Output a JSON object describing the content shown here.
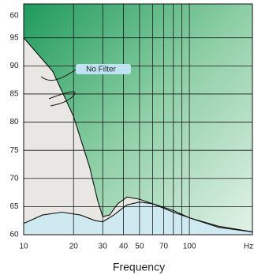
{
  "chart_data": {
    "type": "line",
    "x_label": "Frequency",
    "x_unit": "Hz",
    "top_label": "60",
    "annotation": "No Filter",
    "xscale": "log",
    "xlim": [
      10,
      240
    ],
    "ylim": [
      60,
      101
    ],
    "xticks": [
      10,
      20,
      30,
      40,
      50,
      70,
      100
    ],
    "minor_xticks": [
      60,
      80,
      90
    ],
    "yticks": [
      60,
      65,
      70,
      75,
      80,
      85,
      90,
      95
    ],
    "grid": true,
    "series": [
      {
        "color": "#111111",
        "x": [
          10,
          15,
          20,
          25,
          28,
          30,
          33,
          37,
          42,
          50,
          60,
          80,
          100,
          150,
          240
        ],
        "values": [
          95,
          89,
          81,
          72,
          66,
          63.2,
          63.5,
          65.5,
          66.7,
          66.3,
          65.5,
          64,
          63,
          61.5,
          60.5
        ]
      },
      {
        "color": "#111111",
        "x": [
          10,
          13,
          17,
          22,
          27,
          30,
          35,
          42,
          50,
          60,
          80,
          100,
          150,
          240
        ],
        "values": [
          62,
          63.5,
          64,
          63.5,
          62.5,
          62.3,
          63.5,
          65.3,
          65.8,
          65.5,
          64.3,
          63,
          61.3,
          60.5
        ]
      }
    ]
  }
}
